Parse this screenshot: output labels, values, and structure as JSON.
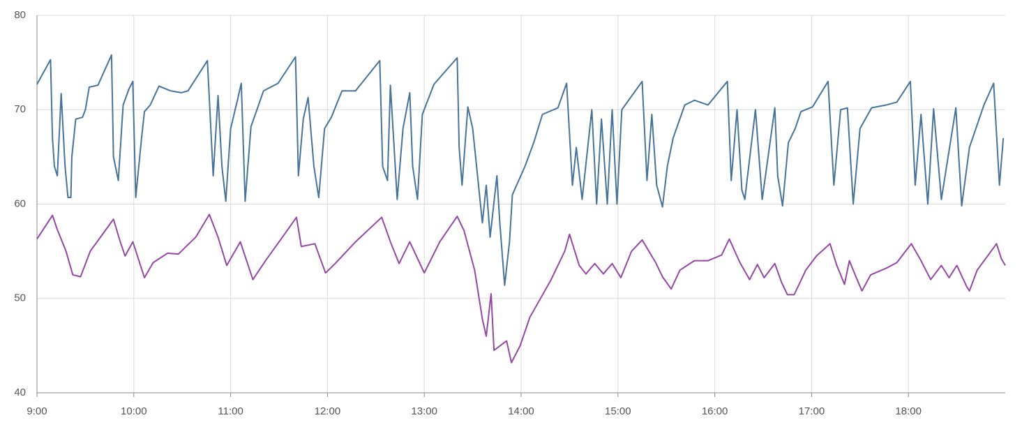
{
  "chart_data": {
    "type": "line",
    "xlim": [
      9,
      19
    ],
    "xticks": [
      {
        "value": 9,
        "label": "9:00"
      },
      {
        "value": 10,
        "label": "10:00"
      },
      {
        "value": 11,
        "label": "11:00"
      },
      {
        "value": 12,
        "label": "12:00"
      },
      {
        "value": 13,
        "label": "13:00"
      },
      {
        "value": 14,
        "label": "14:00"
      },
      {
        "value": 15,
        "label": "15:00"
      },
      {
        "value": 16,
        "label": "16:00"
      },
      {
        "value": 17,
        "label": "17:00"
      },
      {
        "value": 18,
        "label": "18:00"
      }
    ],
    "ylim": [
      40,
      80
    ],
    "yticks": [
      40,
      50,
      60,
      70,
      80
    ],
    "grid": true,
    "series": [
      {
        "color": "#45739b",
        "x": [
          9.0,
          9.14,
          9.16,
          9.18,
          9.21,
          9.25,
          9.29,
          9.32,
          9.35,
          9.36,
          9.4,
          9.47,
          9.5,
          9.54,
          9.63,
          9.77,
          9.79,
          9.84,
          9.89,
          9.95,
          9.99,
          10.02,
          10.08,
          10.11,
          10.17,
          10.26,
          10.38,
          10.49,
          10.56,
          10.76,
          10.82,
          10.87,
          10.91,
          10.95,
          11.0,
          11.07,
          11.11,
          11.15,
          11.21,
          11.34,
          11.49,
          11.67,
          11.7,
          11.75,
          11.8,
          11.86,
          11.91,
          11.97,
          12.04,
          12.15,
          12.29,
          12.54,
          12.57,
          12.62,
          12.65,
          12.7,
          12.72,
          12.78,
          12.85,
          12.88,
          12.93,
          12.98,
          13.1,
          13.34,
          13.36,
          13.39,
          13.45,
          13.5,
          13.55,
          13.6,
          13.64,
          13.68,
          13.75,
          13.78,
          13.83,
          13.88,
          13.91,
          14.04,
          14.13,
          14.22,
          14.38,
          14.47,
          14.53,
          14.57,
          14.63,
          14.73,
          14.78,
          14.83,
          14.89,
          14.94,
          14.99,
          15.04,
          15.25,
          15.3,
          15.35,
          15.4,
          15.46,
          15.51,
          15.57,
          15.69,
          15.79,
          15.93,
          16.13,
          16.17,
          16.23,
          16.28,
          16.31,
          16.42,
          16.49,
          16.62,
          16.65,
          16.7,
          16.76,
          16.83,
          16.89,
          17.01,
          17.17,
          17.23,
          17.3,
          17.37,
          17.43,
          17.5,
          17.62,
          17.77,
          17.88,
          18.02,
          18.07,
          18.13,
          18.2,
          18.26,
          18.34,
          18.49,
          18.55,
          18.63,
          18.78,
          18.88,
          18.94,
          18.98
        ],
        "values": [
          72.7,
          75.3,
          67,
          64,
          63,
          71.7,
          64,
          60.7,
          60.7,
          65,
          69,
          69.2,
          70,
          72.4,
          72.6,
          75.8,
          65,
          62.5,
          70.5,
          72.2,
          73,
          60.7,
          67,
          69.8,
          70.5,
          72.5,
          72,
          71.8,
          72,
          75.2,
          63,
          71.5,
          64,
          60.3,
          68,
          71,
          72.8,
          60.3,
          68.2,
          72,
          72.8,
          75.6,
          63,
          69,
          71.3,
          64,
          60.7,
          68,
          69.2,
          72,
          72,
          75.2,
          64,
          62.5,
          72.6,
          64,
          60.5,
          68,
          71.8,
          64,
          60.5,
          69.5,
          72.7,
          75.5,
          66,
          62,
          70.3,
          68,
          63,
          58,
          62,
          56.5,
          63,
          58,
          51.4,
          56,
          61,
          64,
          66.5,
          69.5,
          70.2,
          72.8,
          62,
          66,
          60.5,
          70,
          60,
          69,
          60,
          70,
          60,
          70,
          73,
          62.5,
          69.5,
          62,
          59.7,
          64,
          67,
          70.5,
          71,
          70.5,
          73,
          62.5,
          70,
          61.5,
          60.5,
          70,
          60.5,
          70.2,
          63,
          59.8,
          66.5,
          68,
          69.8,
          70.3,
          73,
          62,
          70,
          70.2,
          60,
          68,
          70.2,
          70.5,
          70.8,
          73,
          62,
          69.5,
          60,
          70.1,
          60.5,
          70.2,
          59.8,
          66,
          70.5,
          72.8,
          62,
          67
        ]
      },
      {
        "color": "#9447a4",
        "x": [
          9.0,
          9.16,
          9.21,
          9.3,
          9.37,
          9.45,
          9.55,
          9.79,
          9.86,
          9.91,
          9.99,
          10.11,
          10.2,
          10.35,
          10.46,
          10.64,
          10.78,
          10.87,
          10.96,
          11.1,
          11.23,
          11.36,
          11.57,
          11.68,
          11.73,
          11.87,
          11.98,
          12.08,
          12.29,
          12.56,
          12.65,
          12.74,
          12.85,
          13.0,
          13.16,
          13.34,
          13.41,
          13.52,
          13.6,
          13.64,
          13.69,
          13.72,
          13.81,
          13.85,
          13.9,
          13.99,
          14.09,
          14.31,
          14.45,
          14.5,
          14.6,
          14.67,
          14.76,
          14.85,
          14.94,
          15.03,
          15.14,
          15.25,
          15.39,
          15.46,
          15.55,
          15.64,
          15.79,
          15.93,
          16.07,
          16.15,
          16.26,
          16.36,
          16.44,
          16.51,
          16.62,
          16.69,
          16.75,
          16.82,
          16.94,
          17.05,
          17.19,
          17.26,
          17.34,
          17.39,
          17.47,
          17.52,
          17.61,
          17.77,
          17.88,
          18.03,
          18.13,
          18.23,
          18.34,
          18.42,
          18.5,
          18.6,
          18.63,
          18.71,
          18.91,
          18.96,
          19.0
        ],
        "values": [
          56.3,
          58.8,
          57.3,
          55,
          52.5,
          52.3,
          55,
          58.4,
          56,
          54.5,
          56,
          52.2,
          53.8,
          54.8,
          54.7,
          56.5,
          58.9,
          56.5,
          53.5,
          56,
          52,
          54,
          57,
          58.6,
          55.5,
          55.8,
          52.7,
          53.7,
          56,
          58.6,
          56,
          53.7,
          56,
          52.7,
          56,
          58.7,
          57.2,
          53,
          47.8,
          46,
          50.5,
          44.5,
          45.2,
          45.5,
          43.2,
          45,
          48,
          52,
          55,
          56.8,
          53.5,
          52.6,
          53.7,
          52.6,
          53.7,
          52.2,
          55,
          56.2,
          53.8,
          52.3,
          51,
          53,
          54,
          54,
          54.6,
          56.3,
          53.8,
          52,
          53.6,
          52.2,
          53.7,
          51.7,
          50.4,
          50.4,
          53,
          54.5,
          55.8,
          53.5,
          51.5,
          54,
          52,
          50.8,
          52.5,
          53.2,
          53.8,
          55.8,
          54,
          52,
          53.5,
          52.2,
          53.5,
          51.3,
          50.8,
          53,
          55.8,
          54.2,
          53.5
        ]
      }
    ]
  }
}
